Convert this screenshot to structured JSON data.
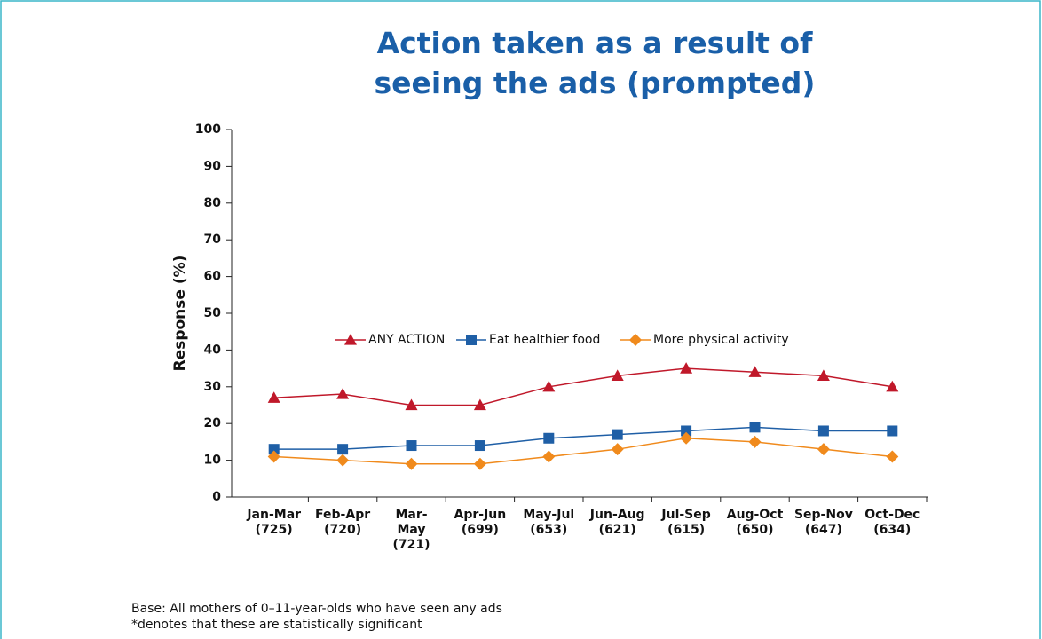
{
  "chart_data": {
    "type": "line",
    "title": "Action taken as a result of seeing the ads (prompted)",
    "y_label": "Response (%)",
    "categories": [
      "Jan-Mar (725)",
      "Feb-Apr (720)",
      "Mar-May (721)",
      "Apr-Jun (699)",
      "May-Jul (653)",
      "Jun-Aug (621)",
      "Jul-Sep (615)",
      "Aug-Oct (650)",
      "Sep-Nov (647)",
      "Oct-Dec (634)"
    ],
    "series": [
      {
        "name": "ANY ACTION",
        "color": "#c0182a",
        "marker": "triangle",
        "values": [
          27,
          28,
          25,
          25,
          30,
          33,
          35,
          34,
          33,
          30
        ]
      },
      {
        "name": "Eat healthier food",
        "color": "#1f5fa6",
        "marker": "square",
        "values": [
          13,
          13,
          14,
          14,
          16,
          17,
          18,
          19,
          18,
          18
        ]
      },
      {
        "name": "More physical activity",
        "color": "#f08a1c",
        "marker": "diamond",
        "values": [
          11,
          10,
          9,
          9,
          11,
          13,
          16,
          15,
          13,
          11
        ]
      }
    ],
    "ylim": [
      0,
      100
    ],
    "yticks": [
      0,
      10,
      20,
      30,
      40,
      50,
      60,
      70,
      80,
      90,
      100
    ],
    "grid": false,
    "notes": [
      "Base: All mothers of 0–11-year-olds who have seen any ads",
      "*denotes that these are statistically significant"
    ]
  }
}
